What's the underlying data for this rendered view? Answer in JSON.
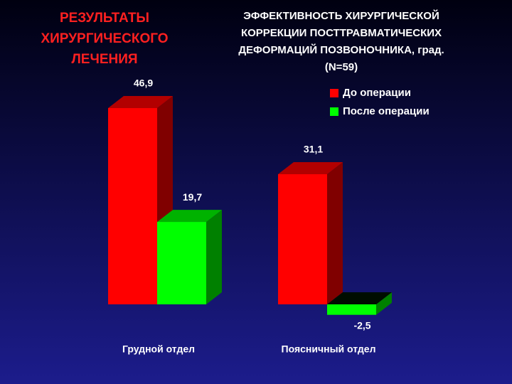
{
  "chart_data": {
    "type": "bar3d",
    "subtitle": [
      "РЕЗУЛЬТАТЫ",
      "ХИРУРГИЧЕСКОГО",
      "ЛЕЧЕНИЯ"
    ],
    "title": [
      "ЭФФЕКТИВНОСТЬ ХИРУРГИЧЕСКОЙ",
      "КОРРЕКЦИИ ПОСТТРАВМАТИЧЕСКИХ",
      "ДЕФОРМАЦИЙ ПОЗВОНОЧНИКА, град.",
      "(N=59)"
    ],
    "categories": [
      "Грудной отдел",
      "Поясничный отдел"
    ],
    "series": [
      {
        "name": "До операции",
        "color": "#ff0000",
        "values": [
          46.9,
          31.1
        ],
        "value_labels": [
          "46,9",
          "31,1"
        ]
      },
      {
        "name": "После операции",
        "color": "#00ff00",
        "values": [
          19.7,
          -2.5
        ],
        "value_labels": [
          "19,7",
          "-2,5"
        ]
      }
    ]
  }
}
